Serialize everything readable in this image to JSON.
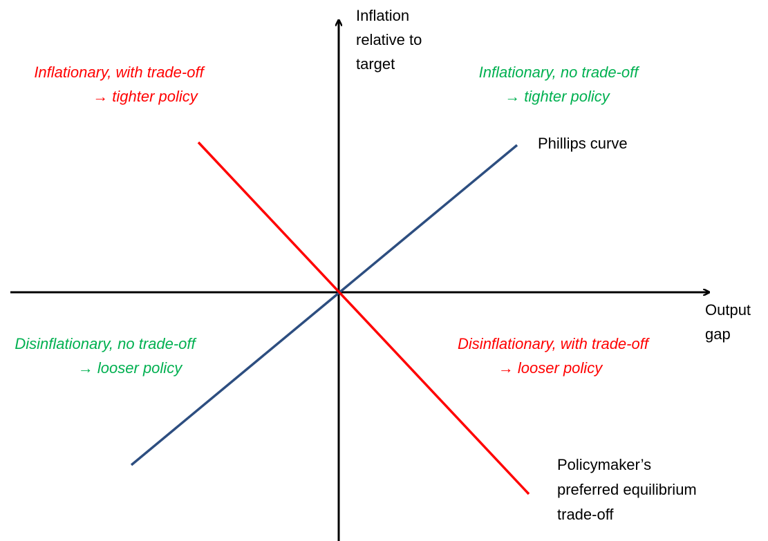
{
  "y_axis_label": [
    "Inflation",
    "relative to",
    "target"
  ],
  "x_axis_label": [
    "Output",
    "gap"
  ],
  "quadrants": [
    {
      "lines": [
        "Inflationary, with trade-off",
        "→ tighter policy"
      ]
    },
    {
      "lines": [
        "Inflationary, no trade-off",
        "→ tighter policy"
      ]
    },
    {
      "lines": [
        "Disinflationary, no trade-off",
        "→ looser policy"
      ]
    },
    {
      "lines": [
        "Disinflationary, with trade-off",
        "→ looser policy"
      ]
    }
  ],
  "curves": [
    {
      "label": [
        "Phillips curve"
      ]
    },
    {
      "label": [
        "Policymaker’s",
        "preferred equilibrium",
        "trade-off"
      ]
    }
  ]
}
